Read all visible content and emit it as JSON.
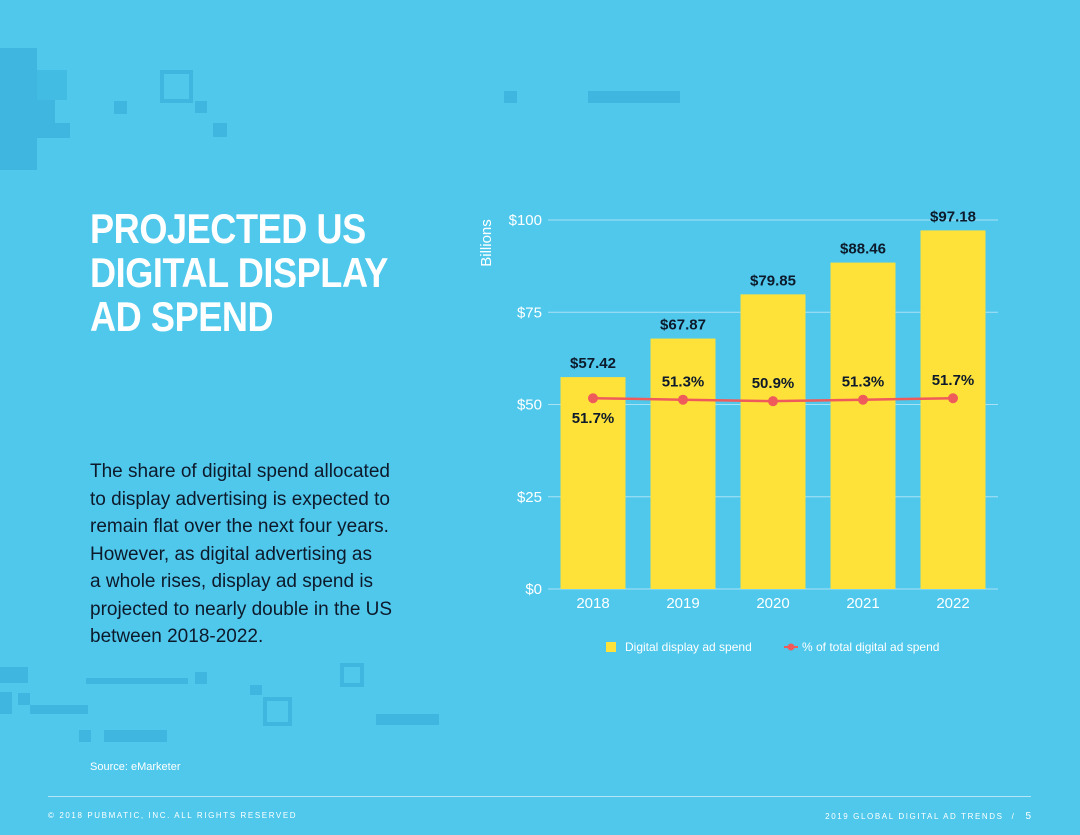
{
  "title_lines": [
    "PROJECTED US",
    "DIGITAL DISPLAY",
    "AD SPEND"
  ],
  "body_lines": [
    "The share of digital spend allocated",
    "to display advertising is expected to",
    "remain flat over the next four years.",
    "However, as digital advertising as",
    "a whole rises, display ad spend is",
    "projected to nearly double in the US",
    "between 2018-2022."
  ],
  "source": "Source: eMarketer",
  "footer": {
    "left": "© 2018 PUBMATIC, INC. ALL RIGHTS RESERVED",
    "right": "2019 GLOBAL DIGITAL AD TRENDS",
    "separator": "/",
    "page": "5"
  },
  "colors": {
    "background": "#4fc8ec",
    "bar": "#fee23a",
    "line": "#ef5b5b",
    "text_dark": "#0d1a2b"
  },
  "chart_data": {
    "type": "bar",
    "categories": [
      "2018",
      "2019",
      "2020",
      "2021",
      "2022"
    ],
    "series": [
      {
        "name": "Digital display ad spend",
        "type": "bar",
        "values": [
          57.42,
          67.87,
          79.85,
          88.46,
          97.18
        ],
        "labels": [
          "$57.42",
          "$67.87",
          "$79.85",
          "$88.46",
          "$97.18"
        ]
      },
      {
        "name": "% of total digital ad spend",
        "type": "line",
        "values": [
          51.7,
          51.3,
          50.9,
          51.3,
          51.7
        ],
        "labels": [
          "51.7%",
          "51.3%",
          "50.9%",
          "51.3%",
          "51.7%"
        ]
      }
    ],
    "ylabel": "Billions",
    "ylim": [
      0,
      100
    ],
    "yticks": [
      0,
      25,
      50,
      75,
      100
    ],
    "ytick_labels": [
      "$0",
      "$25",
      "$50",
      "$75",
      "$100"
    ],
    "grid": true,
    "legend_position": "bottom"
  }
}
